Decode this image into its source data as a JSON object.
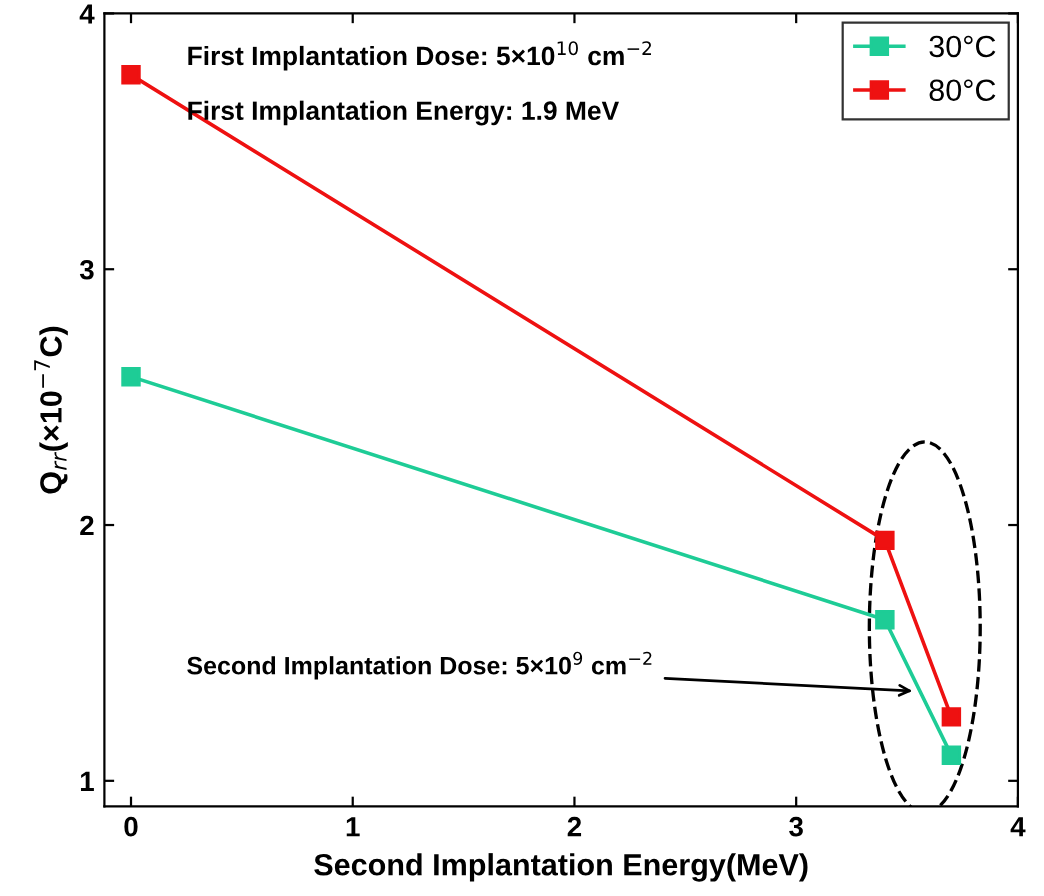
{
  "chart_data": {
    "type": "line",
    "xlabel": "Second Implantation Energy(MeV)",
    "ylabel": "Q$_{rr}$(×10$^{−7}$C)",
    "x": [
      0,
      3.4,
      3.7
    ],
    "series": [
      {
        "name": "30°C",
        "color": "#1ecc96",
        "values": [
          2.58,
          1.63,
          1.1
        ]
      },
      {
        "name": "80°C",
        "color": "#ee1111",
        "values": [
          3.76,
          1.94,
          1.25
        ]
      }
    ],
    "xlim": [
      -0.12,
      4
    ],
    "ylim": [
      0.9,
      4
    ],
    "xticks": [
      0,
      1,
      2,
      3,
      4
    ],
    "yticks": [
      1,
      2,
      3,
      4
    ],
    "marker": "square",
    "line_style": "solid",
    "grid": false,
    "legend": "top right",
    "annotations": [
      "First Implantation Dose: 5×10$^{10}$ cm$^{−2}$",
      "First Implantation Energy: 1.9 MeV",
      {
        "text": "Second Implantation Dose: 5×10$^{9}$ cm$^{−2}$",
        "x": 3.55,
        "y": 1.35
      }
    ]
  }
}
